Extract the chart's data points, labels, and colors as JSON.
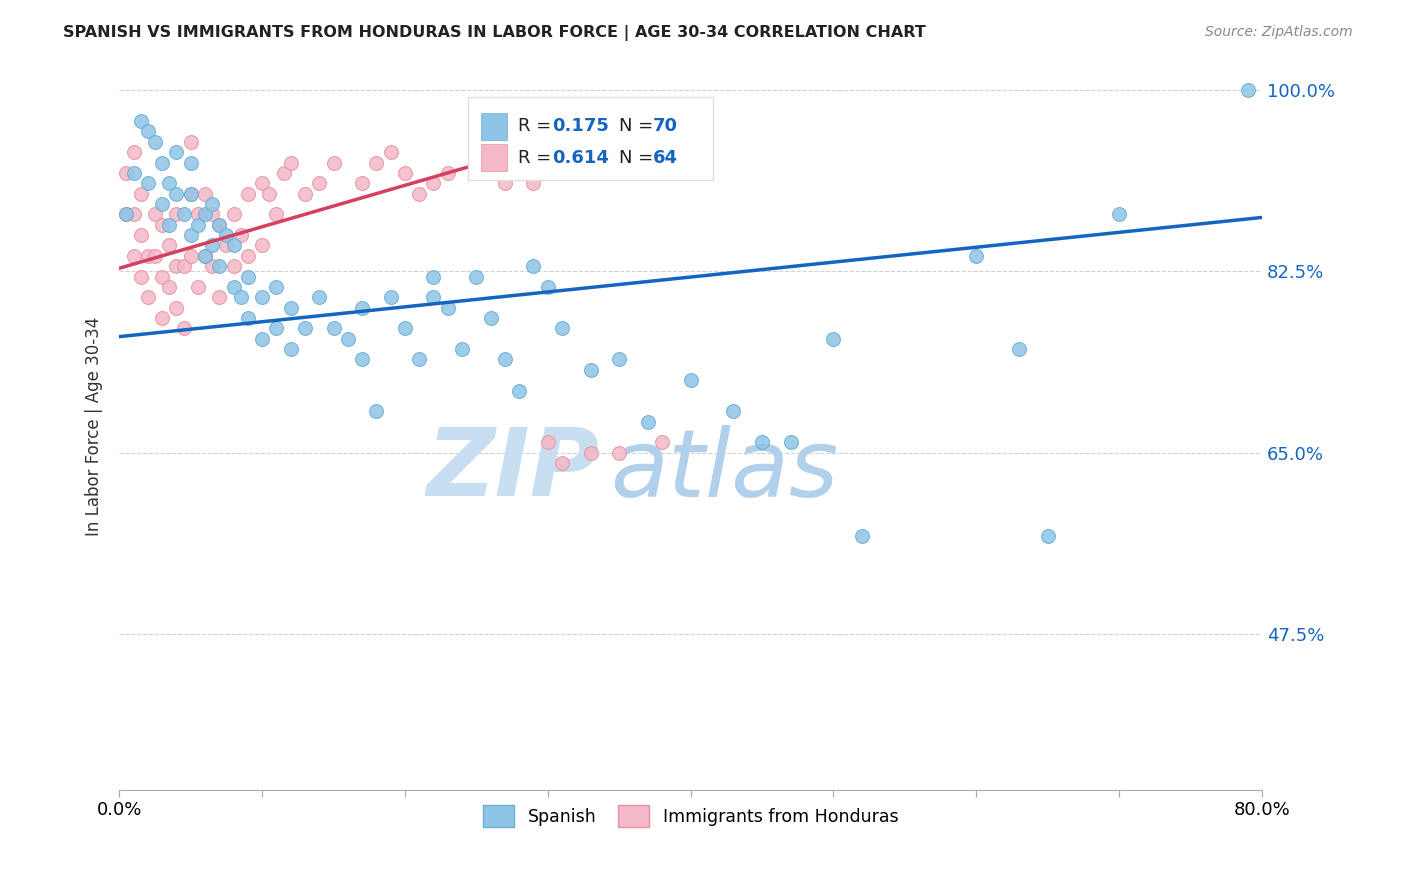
{
  "title": "SPANISH VS IMMIGRANTS FROM HONDURAS IN LABOR FORCE | AGE 30-34 CORRELATION CHART",
  "source": "Source: ZipAtlas.com",
  "ylabel": "In Labor Force | Age 30-34",
  "xlim": [
    0.0,
    0.8
  ],
  "ylim": [
    0.325,
    1.025
  ],
  "ytick_positions": [
    0.475,
    0.65,
    0.825,
    1.0
  ],
  "ytick_labels": [
    "47.5%",
    "65.0%",
    "82.5%",
    "100.0%"
  ],
  "xtick_positions": [
    0.0,
    0.1,
    0.2,
    0.3,
    0.4,
    0.5,
    0.6,
    0.7,
    0.8
  ],
  "xtick_labels": [
    "0.0%",
    "",
    "",
    "",
    "",
    "",
    "",
    "",
    "80.0%"
  ],
  "grid_color": "#cccccc",
  "watermark_zip": "ZIP",
  "watermark_atlas": "atlas",
  "watermark_color": "#c8dff2",
  "blue_color": "#8ec5e6",
  "pink_color": "#f4b8c8",
  "blue_scatter_edge": "#6aadd5",
  "pink_scatter_edge": "#e8909f",
  "blue_line_color": "#1565C0",
  "pink_line_color": "#d44060",
  "legend_text_color": "#1565C0",
  "legend_border_color": "#dddddd",
  "blue_line_x": [
    0.0,
    0.8
  ],
  "blue_line_y": [
    0.762,
    0.877
  ],
  "pink_line_x": [
    0.0,
    0.375
  ],
  "pink_line_y": [
    0.828,
    0.978
  ],
  "blue_x": [
    0.005,
    0.01,
    0.015,
    0.02,
    0.02,
    0.025,
    0.03,
    0.03,
    0.035,
    0.035,
    0.04,
    0.04,
    0.045,
    0.05,
    0.05,
    0.05,
    0.055,
    0.06,
    0.06,
    0.065,
    0.065,
    0.07,
    0.07,
    0.075,
    0.08,
    0.08,
    0.085,
    0.09,
    0.09,
    0.1,
    0.1,
    0.11,
    0.11,
    0.12,
    0.12,
    0.13,
    0.14,
    0.15,
    0.16,
    0.17,
    0.17,
    0.18,
    0.19,
    0.2,
    0.21,
    0.22,
    0.22,
    0.23,
    0.24,
    0.25,
    0.26,
    0.27,
    0.28,
    0.29,
    0.3,
    0.31,
    0.33,
    0.35,
    0.37,
    0.4,
    0.43,
    0.45,
    0.47,
    0.5,
    0.52,
    0.6,
    0.63,
    0.65,
    0.7,
    0.79
  ],
  "blue_y": [
    0.88,
    0.92,
    0.97,
    0.91,
    0.96,
    0.95,
    0.89,
    0.93,
    0.87,
    0.91,
    0.9,
    0.94,
    0.88,
    0.86,
    0.9,
    0.93,
    0.87,
    0.84,
    0.88,
    0.85,
    0.89,
    0.83,
    0.87,
    0.86,
    0.81,
    0.85,
    0.8,
    0.78,
    0.82,
    0.76,
    0.8,
    0.77,
    0.81,
    0.75,
    0.79,
    0.77,
    0.8,
    0.77,
    0.76,
    0.74,
    0.79,
    0.69,
    0.8,
    0.77,
    0.74,
    0.8,
    0.82,
    0.79,
    0.75,
    0.82,
    0.78,
    0.74,
    0.71,
    0.83,
    0.81,
    0.77,
    0.73,
    0.74,
    0.68,
    0.72,
    0.69,
    0.66,
    0.66,
    0.76,
    0.57,
    0.84,
    0.75,
    0.57,
    0.88,
    1.0
  ],
  "pink_x": [
    0.005,
    0.005,
    0.01,
    0.01,
    0.01,
    0.015,
    0.015,
    0.015,
    0.02,
    0.02,
    0.025,
    0.025,
    0.03,
    0.03,
    0.03,
    0.035,
    0.035,
    0.04,
    0.04,
    0.04,
    0.045,
    0.045,
    0.05,
    0.05,
    0.05,
    0.055,
    0.055,
    0.06,
    0.06,
    0.065,
    0.065,
    0.07,
    0.07,
    0.075,
    0.08,
    0.08,
    0.085,
    0.09,
    0.09,
    0.1,
    0.1,
    0.105,
    0.11,
    0.115,
    0.12,
    0.13,
    0.14,
    0.15,
    0.17,
    0.18,
    0.19,
    0.2,
    0.21,
    0.22,
    0.23,
    0.25,
    0.27,
    0.28,
    0.29,
    0.3,
    0.31,
    0.33,
    0.35,
    0.38
  ],
  "pink_y": [
    0.88,
    0.92,
    0.84,
    0.88,
    0.94,
    0.82,
    0.86,
    0.9,
    0.8,
    0.84,
    0.84,
    0.88,
    0.78,
    0.82,
    0.87,
    0.81,
    0.85,
    0.79,
    0.83,
    0.88,
    0.77,
    0.83,
    0.84,
    0.9,
    0.95,
    0.81,
    0.88,
    0.84,
    0.9,
    0.83,
    0.88,
    0.8,
    0.87,
    0.85,
    0.83,
    0.88,
    0.86,
    0.84,
    0.9,
    0.85,
    0.91,
    0.9,
    0.88,
    0.92,
    0.93,
    0.9,
    0.91,
    0.93,
    0.91,
    0.93,
    0.94,
    0.92,
    0.9,
    0.91,
    0.92,
    0.93,
    0.91,
    0.92,
    0.91,
    0.66,
    0.64,
    0.65,
    0.65,
    0.66
  ]
}
